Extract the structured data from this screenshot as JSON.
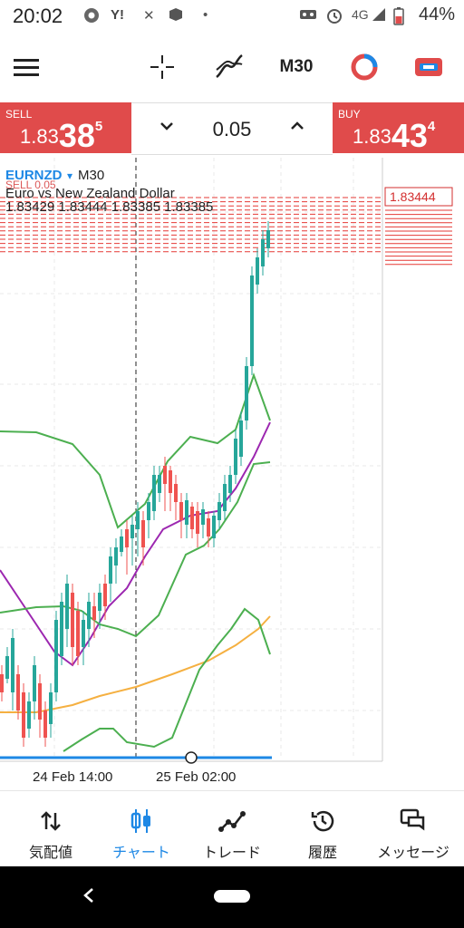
{
  "status_bar": {
    "time": "20:02",
    "network": "4G",
    "battery": "44%",
    "icons": [
      "chrome-icon",
      "yahoo-icon",
      "tools-icon",
      "cube-icon",
      "dot-icon",
      "voicemail-icon",
      "alarm-icon",
      "signal-icon",
      "battery-icon"
    ]
  },
  "toolbar": {
    "timeframe": "M30",
    "icons": [
      "menu-icon",
      "crosshair-icon",
      "indicators-icon",
      "timeframe",
      "objects-icon",
      "trade-icon"
    ]
  },
  "trade_panel": {
    "sell_label": "SELL",
    "sell_price_prefix": "1.83",
    "sell_price_big": "38",
    "sell_price_sup": "5",
    "buy_label": "BUY",
    "buy_price_prefix": "1.83",
    "buy_price_big": "43",
    "buy_price_sup": "4",
    "volume": "0.05",
    "colors": {
      "sell_bg": "#e04b4b",
      "buy_bg": "#e04b4b"
    }
  },
  "chart_header": {
    "symbol": "EURNZD",
    "timeframe": "M30",
    "description": "Euro vs New Zealand Dollar",
    "ohlc": "1.83429 1.83444 1.83385 1.83385",
    "position_label": "SELL 0.05",
    "current_price": "1.83444"
  },
  "chart_data": {
    "type": "line",
    "title": "Euro vs New Zealand Dollar",
    "x": [
      "24 Feb 14:00",
      "25 Feb 02:00"
    ],
    "current_price": 1.83444,
    "series": [],
    "colors": {
      "up": "#26a69a",
      "down": "#ef5350",
      "bollinger": "#4caf50",
      "ma": "#9c27b0",
      "ma_slow": "#f5b041"
    }
  },
  "bottom_nav": {
    "items": [
      {
        "label": "気配値",
        "icon": "quotes-icon"
      },
      {
        "label": "チャート",
        "icon": "chart-icon"
      },
      {
        "label": "トレード",
        "icon": "trade-icon"
      },
      {
        "label": "履歴",
        "icon": "history-icon"
      },
      {
        "label": "メッセージ",
        "icon": "messages-icon"
      }
    ],
    "active_color": "#1e88e5"
  }
}
